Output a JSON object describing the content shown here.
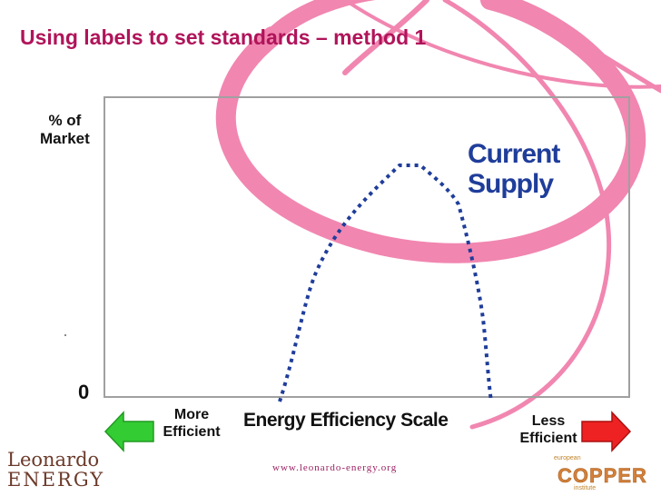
{
  "title": "Using labels to set standards – method 1",
  "y_axis": {
    "label_line1": "% of",
    "label_line2": "Market",
    "zero_label": "0"
  },
  "x_axis": {
    "label": "Energy Efficiency Scale",
    "left_label_line1": "More",
    "left_label_line2": "Efficient",
    "right_label_line1": "Less",
    "right_label_line2": "Efficient"
  },
  "series": {
    "name_line1": "Current",
    "name_line2": "Supply"
  },
  "colors": {
    "title": "#b0145a",
    "curve": "#1f3d9a",
    "decor": "#f07aa8",
    "green_arrow": "#33cc33",
    "red_arrow": "#ee2222"
  },
  "footer": {
    "url": "www.leonardo-energy.org",
    "logo_left_line1": "Leonardo",
    "logo_left_line2": "ENERGY",
    "logo_right_top": "european",
    "logo_right_word": "COPPER",
    "logo_right_bottom": "institute"
  },
  "icons": {
    "left_arrow": "arrow-left-icon",
    "right_arrow": "arrow-right-icon"
  }
}
